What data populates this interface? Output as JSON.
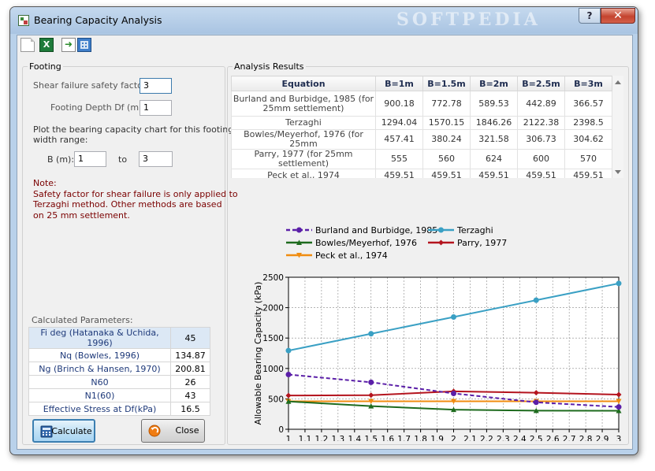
{
  "window": {
    "title": "Bearing Capacity Analysis",
    "watermark": "SOFTPEDIA",
    "help_label": "?",
    "close_label": "✕"
  },
  "toolbar": {
    "items": [
      "new-icon",
      "excel-icon",
      "export-icon",
      "calculator-icon"
    ],
    "excel_glyph": "X"
  },
  "footing": {
    "group_label": "Footing",
    "safety_label": "Shear failure safety factor:",
    "safety_value": "3",
    "depth_label": "Footing Depth Df (m):",
    "depth_value": "1",
    "range_text_1": "Plot the bearing capacity chart for this footing",
    "range_text_2": "width range:",
    "b_label": "B (m):",
    "b_from": "1",
    "to_label": "to",
    "b_to": "3",
    "note_lines": [
      "Note:",
      "Safety factor for shear failure is only applied to",
      "Terzaghi method. Other methods are based",
      "on 25 mm settlement."
    ]
  },
  "calculated": {
    "label": "Calculated Parameters:",
    "rows": [
      {
        "name": "Fi deg (Hatanaka & Uchida, 1996)",
        "value": "45"
      },
      {
        "name": "Nq (Bowles, 1996)",
        "value": "134.87"
      },
      {
        "name": "Ng (Brinch & Hansen, 1970)",
        "value": "200.81"
      },
      {
        "name": "N60",
        "value": "26"
      },
      {
        "name": "N1(60)",
        "value": "43"
      },
      {
        "name": "Effective Stress at Df(kPa)",
        "value": "16.5"
      }
    ]
  },
  "buttons": {
    "calculate": "Calculate",
    "close": "Close"
  },
  "results": {
    "group_label": "Analysis Results",
    "headers": [
      "Equation",
      "B=1m",
      "B=1.5m",
      "B=2m",
      "B=2.5m",
      "B=3m"
    ],
    "rows": [
      [
        "Burland and Burbidge, 1985 (for 25mm settlement)",
        "900.18",
        "772.78",
        "589.53",
        "442.89",
        "366.57"
      ],
      [
        "Terzaghi",
        "1294.04",
        "1570.15",
        "1846.26",
        "2122.38",
        "2398.5"
      ],
      [
        "Bowles/Meyerhof, 1976 (for 25mm",
        "457.41",
        "380.24",
        "321.58",
        "306.73",
        "304.62"
      ],
      [
        "Parry, 1977 (for 25mm settlement)",
        "555",
        "560",
        "624",
        "600",
        "570"
      ],
      [
        "Peck et al., 1974",
        "459.51",
        "459.51",
        "459.51",
        "459.51",
        "459.51"
      ]
    ]
  },
  "colors": {
    "burland": "#5b1fa8",
    "terzaghi": "#3aa0c4",
    "bowles": "#1e6b1e",
    "parry": "#b4141e",
    "peck": "#f08c10"
  },
  "chart_data": {
    "type": "line",
    "xlabel": "Footing Width (m)",
    "ylabel": "Allowable Bearing Capacity (kPa)",
    "xlim": [
      1,
      3
    ],
    "ylim": [
      0,
      2500
    ],
    "x_ticks": [
      "1",
      "1.1",
      "1.2",
      "1.3",
      "1.4",
      "1.5",
      "1.6",
      "1.7",
      "1.8",
      "1.9",
      "2",
      "2.1",
      "2.2",
      "2.3",
      "2.4",
      "2.5",
      "2.6",
      "2.7",
      "2.8",
      "2.9",
      "3"
    ],
    "y_ticks": [
      "0",
      "500",
      "1000",
      "1500",
      "2000",
      "2500"
    ],
    "grid": true,
    "legend_position": "top",
    "x": [
      1,
      1.5,
      2,
      2.5,
      3
    ],
    "series": [
      {
        "name": "Burland and Burbidge, 1985",
        "values": [
          900.18,
          772.78,
          589.53,
          442.89,
          366.57
        ]
      },
      {
        "name": "Terzaghi",
        "values": [
          1294.04,
          1570.15,
          1846.26,
          2122.38,
          2398.5
        ]
      },
      {
        "name": "Bowles/Meyerhof, 1976",
        "values": [
          457.41,
          380.24,
          321.58,
          306.73,
          304.62
        ]
      },
      {
        "name": "Parry, 1977",
        "values": [
          555,
          560,
          624,
          600,
          570
        ]
      },
      {
        "name": "Peck et al., 1974",
        "values": [
          459.51,
          459.51,
          459.51,
          459.51,
          459.51
        ]
      }
    ]
  }
}
